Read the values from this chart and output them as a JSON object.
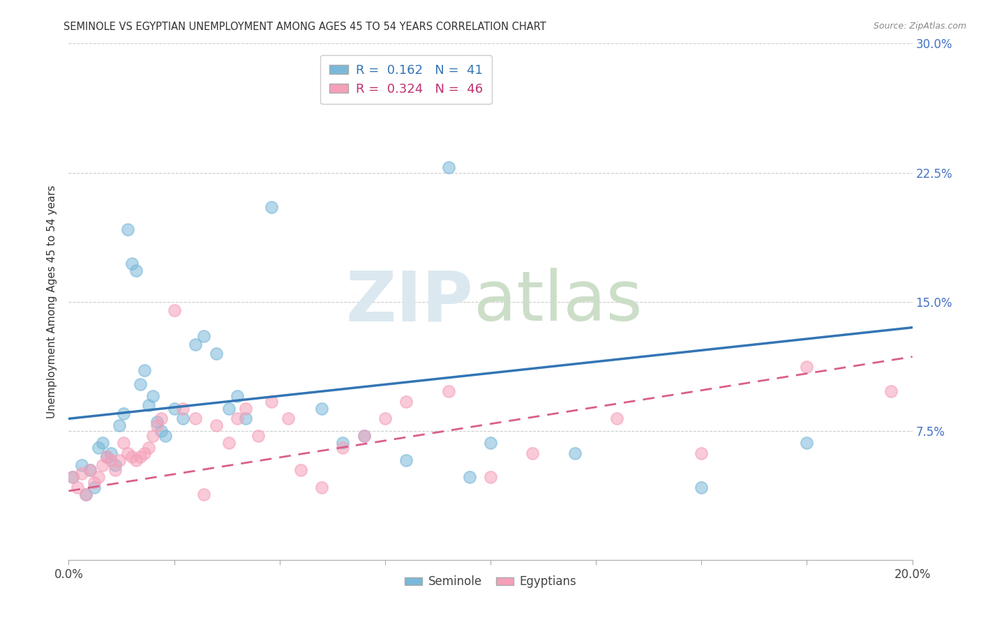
{
  "title": "SEMINOLE VS EGYPTIAN UNEMPLOYMENT AMONG AGES 45 TO 54 YEARS CORRELATION CHART",
  "source": "Source: ZipAtlas.com",
  "ylabel": "Unemployment Among Ages 45 to 54 years",
  "xlim": [
    0.0,
    0.2
  ],
  "ylim": [
    0.0,
    0.3
  ],
  "xticks": [
    0.0,
    0.025,
    0.05,
    0.075,
    0.1,
    0.125,
    0.15,
    0.175,
    0.2
  ],
  "yticks": [
    0.0,
    0.075,
    0.15,
    0.225,
    0.3
  ],
  "legend_R1": "R =  0.162",
  "legend_N1": "N =  41",
  "legend_R2": "R =  0.324",
  "legend_N2": "N =  46",
  "seminole_color": "#7ab8d9",
  "egyptians_color": "#f5a0b8",
  "line_seminole_color": "#3375b5",
  "line_egyptians_color": "#d95f8a",
  "seminole_x": [
    0.001,
    0.003,
    0.004,
    0.005,
    0.006,
    0.007,
    0.008,
    0.009,
    0.01,
    0.011,
    0.012,
    0.013,
    0.014,
    0.015,
    0.016,
    0.017,
    0.018,
    0.019,
    0.02,
    0.021,
    0.022,
    0.023,
    0.025,
    0.027,
    0.03,
    0.032,
    0.035,
    0.038,
    0.04,
    0.042,
    0.048,
    0.06,
    0.065,
    0.07,
    0.08,
    0.09,
    0.095,
    0.1,
    0.12,
    0.15,
    0.175
  ],
  "seminole_y": [
    0.048,
    0.055,
    0.038,
    0.052,
    0.042,
    0.065,
    0.068,
    0.06,
    0.062,
    0.055,
    0.078,
    0.085,
    0.192,
    0.172,
    0.168,
    0.102,
    0.11,
    0.09,
    0.095,
    0.08,
    0.075,
    0.072,
    0.088,
    0.082,
    0.125,
    0.13,
    0.12,
    0.088,
    0.095,
    0.082,
    0.205,
    0.088,
    0.068,
    0.072,
    0.058,
    0.228,
    0.048,
    0.068,
    0.062,
    0.042,
    0.068
  ],
  "egyptians_x": [
    0.001,
    0.002,
    0.003,
    0.004,
    0.005,
    0.006,
    0.007,
    0.008,
    0.009,
    0.01,
    0.011,
    0.012,
    0.013,
    0.014,
    0.015,
    0.016,
    0.017,
    0.018,
    0.019,
    0.02,
    0.021,
    0.022,
    0.025,
    0.027,
    0.03,
    0.032,
    0.035,
    0.038,
    0.04,
    0.042,
    0.045,
    0.048,
    0.052,
    0.055,
    0.06,
    0.065,
    0.07,
    0.075,
    0.08,
    0.09,
    0.1,
    0.11,
    0.13,
    0.15,
    0.175,
    0.195
  ],
  "egyptians_y": [
    0.048,
    0.042,
    0.05,
    0.038,
    0.052,
    0.045,
    0.048,
    0.055,
    0.06,
    0.058,
    0.052,
    0.058,
    0.068,
    0.062,
    0.06,
    0.058,
    0.06,
    0.062,
    0.065,
    0.072,
    0.078,
    0.082,
    0.145,
    0.088,
    0.082,
    0.038,
    0.078,
    0.068,
    0.082,
    0.088,
    0.072,
    0.092,
    0.082,
    0.052,
    0.042,
    0.065,
    0.072,
    0.082,
    0.092,
    0.098,
    0.048,
    0.062,
    0.082,
    0.062,
    0.112,
    0.098
  ]
}
